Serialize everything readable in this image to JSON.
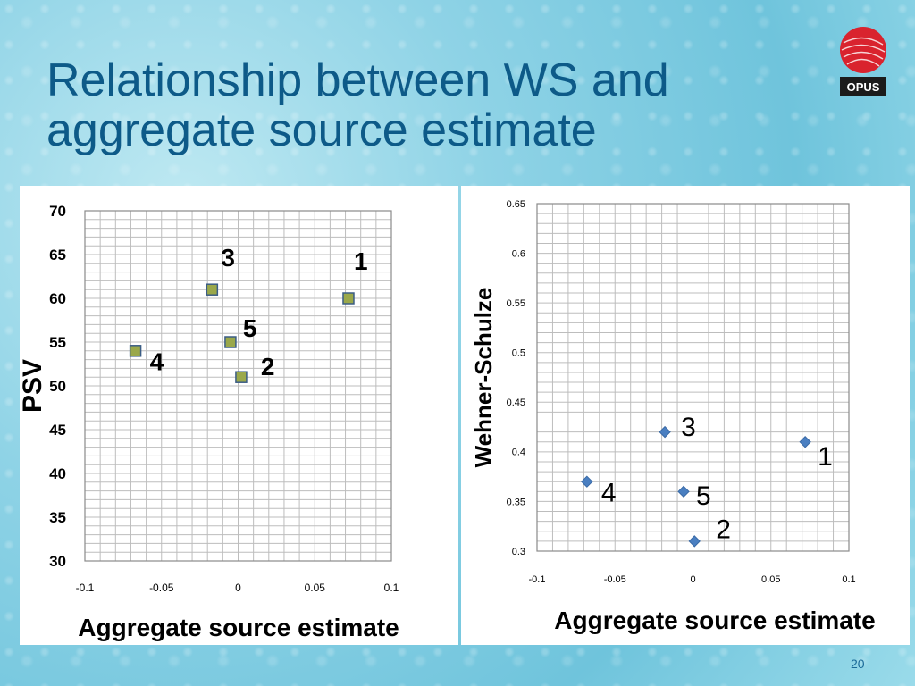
{
  "slide": {
    "title_line1": "Relationship between WS and",
    "title_line2": "aggregate source estimate",
    "logo_text": "OPUS",
    "page_number": "20"
  },
  "chart_data": [
    {
      "type": "scatter",
      "title": "",
      "xlabel": "Aggregate source estimate",
      "ylabel": "PSV",
      "xlim": [
        -0.1,
        0.1
      ],
      "ylim": [
        30,
        70
      ],
      "xticks": [
        "-0.1",
        "-0.05",
        "0",
        "0.05",
        "0.1"
      ],
      "yticks": [
        "30",
        "35",
        "40",
        "45",
        "50",
        "55",
        "60",
        "65",
        "70"
      ],
      "grid": true,
      "points": [
        {
          "label": "1",
          "x": 0.072,
          "y": 60
        },
        {
          "label": "2",
          "x": 0.002,
          "y": 51
        },
        {
          "label": "3",
          "x": -0.017,
          "y": 61
        },
        {
          "label": "4",
          "x": -0.067,
          "y": 54
        },
        {
          "label": "5",
          "x": -0.005,
          "y": 55
        }
      ],
      "marker_color": "#9aa84a"
    },
    {
      "type": "scatter",
      "title": "",
      "xlabel": "Aggregate source estimate",
      "ylabel": "Wehner-Schulze",
      "xlim": [
        -0.1,
        0.1
      ],
      "ylim": [
        0.3,
        0.65
      ],
      "xticks": [
        "-0.1",
        "-0.05",
        "0",
        "0.05",
        "0.1"
      ],
      "yticks": [
        "0.3",
        "0.35",
        "0.4",
        "0.45",
        "0.5",
        "0.55",
        "0.6",
        "0.65"
      ],
      "grid": true,
      "points": [
        {
          "label": "1",
          "x": 0.072,
          "y": 0.41
        },
        {
          "label": "2",
          "x": 0.001,
          "y": 0.31
        },
        {
          "label": "3",
          "x": -0.018,
          "y": 0.42
        },
        {
          "label": "4",
          "x": -0.068,
          "y": 0.37
        },
        {
          "label": "5",
          "x": -0.006,
          "y": 0.36
        }
      ],
      "marker_color": "#4a7fc1"
    }
  ]
}
